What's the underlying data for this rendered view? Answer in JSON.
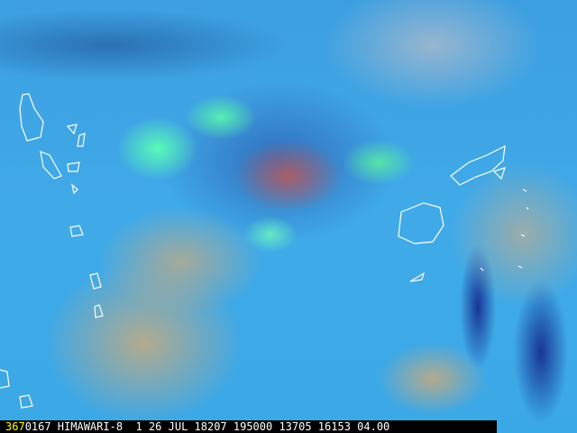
{
  "image": {
    "description_colors": {
      "ocean": "#3aa6e6",
      "convection": "#5affb4",
      "plume": "#be5a5a",
      "coastline": "#ffffff"
    }
  },
  "caption": {
    "frame_number": "367",
    "text": "0167 HIMAWARI-8  1 26 JUL 18207 195000 13705 16153 04.00",
    "frame_color": "#ffff00"
  }
}
